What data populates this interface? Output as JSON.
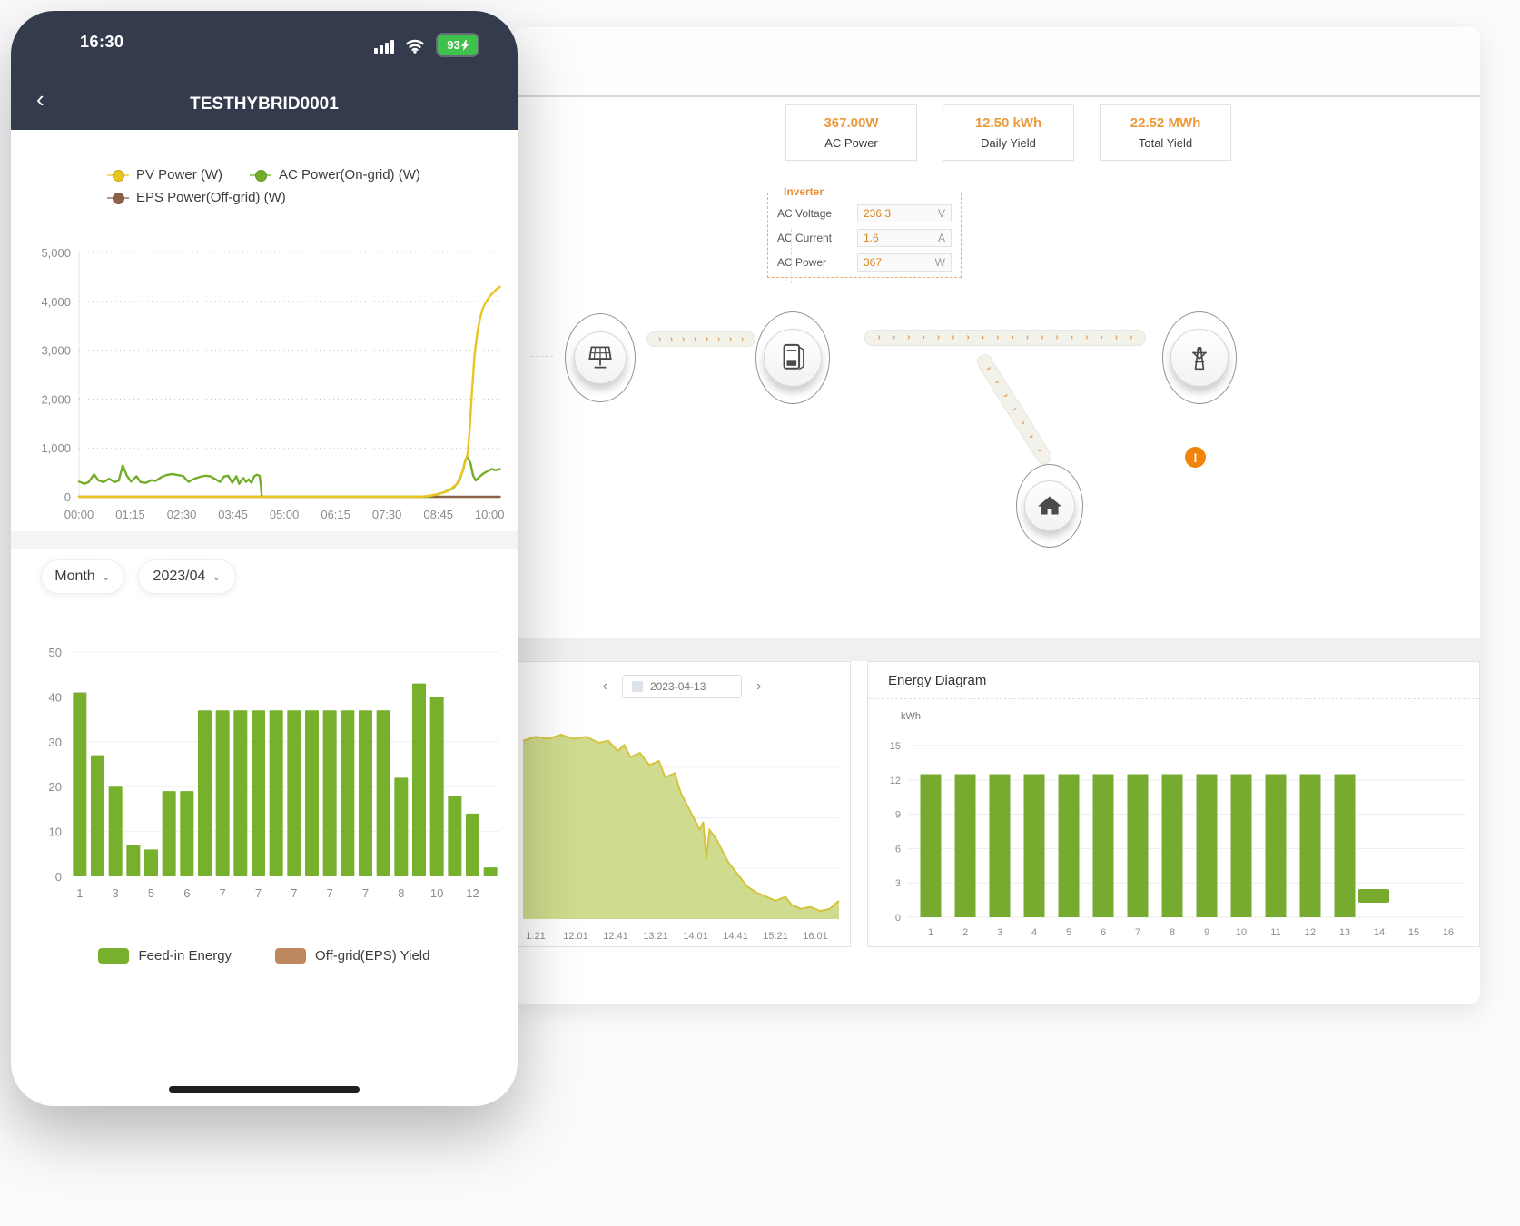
{
  "phone": {
    "status": {
      "time": "16:30",
      "battery_percent": "93"
    },
    "nav": {
      "back": "‹",
      "title": "TESTHYBRID0001"
    },
    "filters": {
      "period_label": "Month",
      "month_label": "2023/04",
      "chevron": "⌄"
    }
  },
  "desktop": {
    "stats": [
      {
        "value": "367.00W",
        "label": "AC Power"
      },
      {
        "value": "12.50 kWh",
        "label": "Daily Yield"
      },
      {
        "value": "22.52 MWh",
        "label": "Total Yield"
      }
    ],
    "inverter_panel": {
      "title": "Inverter",
      "rows": [
        {
          "label": "AC Voltage",
          "value": "236.3",
          "unit": "V"
        },
        {
          "label": "AC Current",
          "value": "1.6",
          "unit": "A"
        },
        {
          "label": "AC Power",
          "value": "367",
          "unit": "W"
        }
      ]
    },
    "flow": {
      "arrow_char": "›",
      "chains": [
        {
          "id": "solar-to-inverter",
          "count": 8
        },
        {
          "id": "inverter-to-grid",
          "count": 18
        },
        {
          "id": "inverter-to-home",
          "count": 7
        }
      ],
      "warning": "!"
    },
    "day_panel": {
      "prev": "‹",
      "next": "›",
      "date": "2023-04-13"
    },
    "energy_panel": {
      "title": "Energy Diagram",
      "unit": "kWh"
    }
  },
  "chart_data": [
    {
      "id": "phone-power-line",
      "type": "line",
      "title": "Daily power curves (phone)",
      "ylim": [
        0,
        5000
      ],
      "y_ticks": [
        0,
        1000,
        2000,
        3000,
        4000,
        5000
      ],
      "y_tick_labels": [
        "0",
        "1,000",
        "2,000",
        "3,000",
        "4,000",
        "5,000"
      ],
      "x_tick_minutes": [
        0,
        75,
        150,
        225,
        300,
        375,
        450,
        525,
        600
      ],
      "x_tick_labels": [
        "00:00",
        "01:15",
        "02:30",
        "03:45",
        "05:00",
        "06:15",
        "07:30",
        "08:45",
        "10:00"
      ],
      "xlim": [
        0,
        617
      ],
      "legend_position": "top",
      "series": [
        {
          "name": "PV Power (W)",
          "color": "#e9c522",
          "points": [
            [
              0,
              0
            ],
            [
              500,
              0
            ],
            [
              512,
              20
            ],
            [
              526,
              60
            ],
            [
              540,
              120
            ],
            [
              552,
              260
            ],
            [
              560,
              500
            ],
            [
              565,
              740
            ],
            [
              568,
              900
            ],
            [
              571,
              1400
            ],
            [
              574,
              2100
            ],
            [
              578,
              2900
            ],
            [
              582,
              3350
            ],
            [
              586,
              3650
            ],
            [
              590,
              3850
            ],
            [
              596,
              4020
            ],
            [
              602,
              4130
            ],
            [
              608,
              4220
            ],
            [
              615,
              4300
            ]
          ]
        },
        {
          "name": "AC Power(On-grid) (W)",
          "color": "#74ad2b",
          "points": [
            [
              0,
              310
            ],
            [
              8,
              265
            ],
            [
              14,
              300
            ],
            [
              22,
              460
            ],
            [
              28,
              340
            ],
            [
              36,
              300
            ],
            [
              44,
              370
            ],
            [
              52,
              300
            ],
            [
              58,
              330
            ],
            [
              64,
              640
            ],
            [
              70,
              430
            ],
            [
              76,
              310
            ],
            [
              84,
              420
            ],
            [
              90,
              300
            ],
            [
              98,
              285
            ],
            [
              106,
              340
            ],
            [
              112,
              325
            ],
            [
              120,
              400
            ],
            [
              128,
              445
            ],
            [
              136,
              465
            ],
            [
              144,
              445
            ],
            [
              152,
              425
            ],
            [
              160,
              305
            ],
            [
              168,
              365
            ],
            [
              176,
              405
            ],
            [
              184,
              430
            ],
            [
              192,
              420
            ],
            [
              200,
              355
            ],
            [
              206,
              305
            ],
            [
              212,
              415
            ],
            [
              218,
              430
            ],
            [
              224,
              285
            ],
            [
              230,
              420
            ],
            [
              234,
              265
            ],
            [
              240,
              385
            ],
            [
              244,
              305
            ],
            [
              248,
              355
            ],
            [
              252,
              285
            ],
            [
              256,
              420
            ],
            [
              260,
              450
            ],
            [
              264,
              430
            ],
            [
              266,
              200
            ],
            [
              267,
              0
            ],
            [
              510,
              0
            ],
            [
              520,
              35
            ],
            [
              533,
              90
            ],
            [
              546,
              165
            ],
            [
              555,
              310
            ],
            [
              561,
              540
            ],
            [
              565,
              770
            ],
            [
              568,
              805
            ],
            [
              572,
              690
            ],
            [
              576,
              430
            ],
            [
              580,
              335
            ],
            [
              585,
              405
            ],
            [
              591,
              475
            ],
            [
              597,
              525
            ],
            [
              603,
              565
            ],
            [
              609,
              545
            ],
            [
              615,
              565
            ]
          ]
        },
        {
          "name": "EPS Power(Off-grid) (W)",
          "color": "#8c6247",
          "points": [
            [
              0,
              0
            ],
            [
              615,
              0
            ]
          ]
        }
      ]
    },
    {
      "id": "phone-month-bars",
      "type": "bar",
      "title": "Monthly feed-in energy (phone)",
      "ylim": [
        0,
        50
      ],
      "y_ticks": [
        0,
        10,
        20,
        30,
        40,
        50
      ],
      "values": [
        41,
        27,
        20,
        7,
        6,
        19,
        19,
        37,
        37,
        37,
        37,
        37,
        37,
        37,
        37,
        37,
        37,
        37,
        22,
        43,
        40,
        18,
        14,
        2
      ],
      "x_labels": [
        "1",
        "3",
        "5",
        "6",
        "7",
        "7",
        "7",
        "7",
        "7",
        "8",
        "10",
        "12"
      ],
      "bar_color": "#76b02c",
      "legend": [
        {
          "label": "Feed-in Energy",
          "color": "#76b02c"
        },
        {
          "label": "Off-grid(EPS) Yield",
          "color": "#bd8760"
        }
      ]
    },
    {
      "id": "desktop-day-area",
      "type": "area",
      "title": "Day power curve 2023-04-13 (desktop)",
      "fill": "#ccd988",
      "stroke": "#d6c33f",
      "x_tick_labels": [
        "1:21",
        "12:01",
        "12:41",
        "13:21",
        "14:01",
        "14:41",
        "15:21",
        "16:01"
      ],
      "points_pct": [
        [
          0,
          88
        ],
        [
          4,
          90
        ],
        [
          8,
          89
        ],
        [
          12,
          91
        ],
        [
          16,
          89
        ],
        [
          20,
          90
        ],
        [
          24,
          87
        ],
        [
          27,
          88
        ],
        [
          30,
          83
        ],
        [
          32,
          86
        ],
        [
          34,
          80
        ],
        [
          37,
          82
        ],
        [
          40,
          76
        ],
        [
          43,
          78
        ],
        [
          45,
          70
        ],
        [
          48,
          72
        ],
        [
          50,
          62
        ],
        [
          52,
          56
        ],
        [
          54,
          50
        ],
        [
          56,
          44
        ],
        [
          57,
          48
        ],
        [
          58,
          30
        ],
        [
          59,
          44
        ],
        [
          61,
          40
        ],
        [
          63,
          34
        ],
        [
          65,
          28
        ],
        [
          68,
          22
        ],
        [
          71,
          16
        ],
        [
          74,
          13
        ],
        [
          77,
          11
        ],
        [
          80,
          9
        ],
        [
          83,
          11
        ],
        [
          85,
          7
        ],
        [
          88,
          5
        ],
        [
          91,
          6
        ],
        [
          94,
          4
        ],
        [
          97,
          5
        ],
        [
          100,
          9
        ]
      ]
    },
    {
      "id": "desktop-energy-bars",
      "type": "bar",
      "title": "Energy Diagram",
      "ylabel": "kWh",
      "ylim": [
        0,
        15
      ],
      "y_ticks": [
        0,
        3,
        6,
        9,
        12,
        15
      ],
      "categories": [
        "1",
        "2",
        "3",
        "4",
        "5",
        "6",
        "7",
        "8",
        "9",
        "10",
        "11",
        "12",
        "13",
        "14",
        "15",
        "16"
      ],
      "values": [
        12.5,
        12.5,
        12.5,
        12.5,
        12.5,
        12.5,
        12.5,
        12.5,
        12.5,
        12.5,
        12.5,
        12.5,
        12.5,
        0,
        0,
        0
      ],
      "bar_color": "#76ab2f"
    }
  ]
}
